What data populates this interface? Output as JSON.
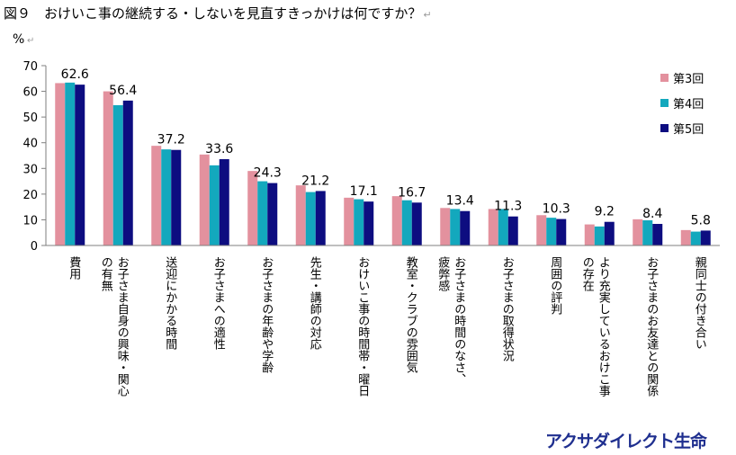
{
  "title": "図９　おけいこ事の継続する・しないを見直すきっかけは何ですか？",
  "return_mark": "↵",
  "brand": "アクサダイレクト生命",
  "colors": {
    "s3": "#e3919e",
    "s4": "#13a8bd",
    "s5": "#0d0d80",
    "axis": "#7f7f7f",
    "grid": "#d9d9d9"
  },
  "chart_data": {
    "type": "bar",
    "ylabel": "%",
    "ylim": [
      0,
      70
    ],
    "yticks": [
      0,
      10,
      20,
      30,
      40,
      50,
      60,
      70
    ],
    "legend_position": "top-right",
    "categories": [
      [
        "費用"
      ],
      [
        "お子さま自身の興味・関心",
        "の有無"
      ],
      [
        "送迎にかかる時間"
      ],
      [
        "お子さまへの適性"
      ],
      [
        "お子さまの年齢や学齢"
      ],
      [
        "先生・講師の対応"
      ],
      [
        "おけいこ事の時間帯・曜日"
      ],
      [
        "教室・クラブの雰囲気"
      ],
      [
        "お子さまの時間のなさ、",
        "疲弊感"
      ],
      [
        "お子さまの取得状況"
      ],
      [
        "周囲の評判"
      ],
      [
        "より充実しているおけこ事",
        "の存在"
      ],
      [
        "お子さまのお友達との関係"
      ],
      [
        "親同士の付き合い"
      ]
    ],
    "series": [
      {
        "name": "第3回",
        "values": [
          63.2,
          60.0,
          38.8,
          35.4,
          29.0,
          23.4,
          18.6,
          19.2,
          14.6,
          14.2,
          11.8,
          8.2,
          10.2,
          6.0
        ]
      },
      {
        "name": "第4回",
        "values": [
          63.4,
          54.6,
          37.4,
          31.2,
          25.0,
          20.8,
          18.0,
          17.6,
          14.2,
          14.2,
          10.8,
          7.4,
          9.8,
          5.4
        ]
      },
      {
        "name": "第5回",
        "values": [
          62.6,
          56.4,
          37.2,
          33.6,
          24.3,
          21.2,
          17.1,
          16.7,
          13.4,
          11.3,
          10.3,
          9.2,
          8.4,
          5.8
        ]
      }
    ],
    "data_labels": [
      "62.6",
      "56.4",
      "37.2",
      "33.6",
      "24.3",
      "21.2",
      "17.1",
      "16.7",
      "13.4",
      "11.3",
      "10.3",
      "9.2",
      "8.4",
      "5.8"
    ]
  }
}
